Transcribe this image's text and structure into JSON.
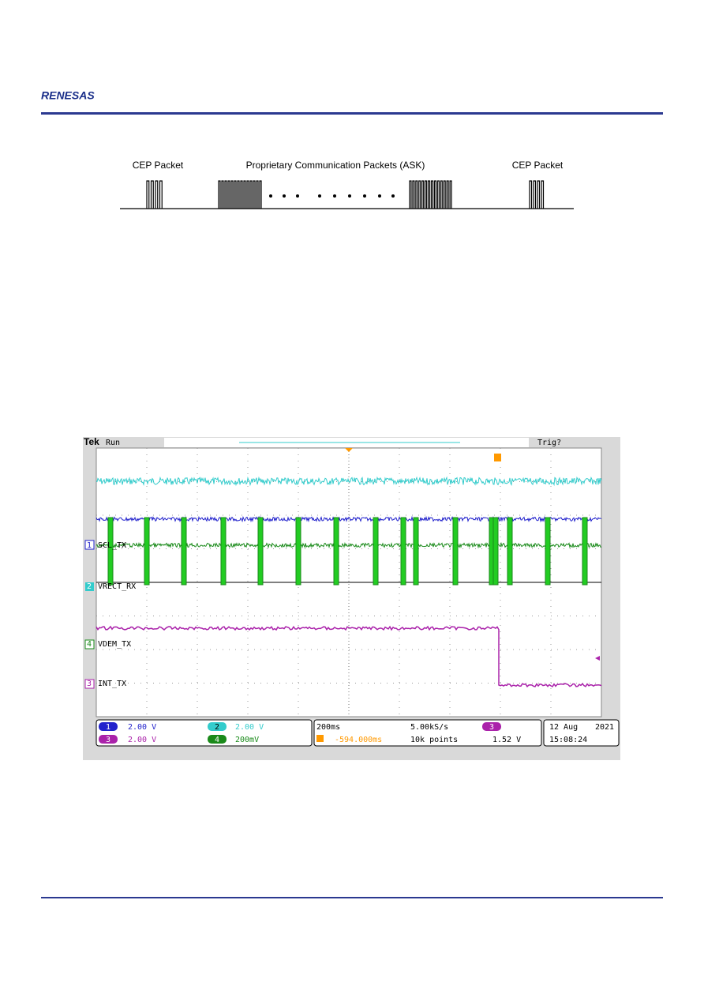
{
  "header": {
    "logo": "RENESAS"
  },
  "diagram": {
    "labels": [
      "CEP Packet",
      "Proprietary Communication Packets (ASK)",
      "CEP Packet"
    ]
  },
  "scope": {
    "brand": "Tek",
    "status": "Run",
    "trigger_status": "Trig?",
    "channels": [
      {
        "number": "1",
        "label": "SCL_TX",
        "scale": "2.00 V"
      },
      {
        "number": "2",
        "label": "VRECT_RX",
        "scale": "2.00 V"
      },
      {
        "number": "3",
        "label": "INT_TX",
        "scale": "2.00 V"
      },
      {
        "number": "4",
        "label": "VDEM_TX",
        "scale": "200mV"
      }
    ],
    "timebase": "200ms",
    "sample_rate": "5.00kS/s",
    "trigger_position": "-594.000ms",
    "record_length": "10k points",
    "trigger_channel": "3",
    "trigger_level": "1.52 V",
    "date": "12 Aug",
    "year": "2021",
    "time": "15:08:24"
  }
}
